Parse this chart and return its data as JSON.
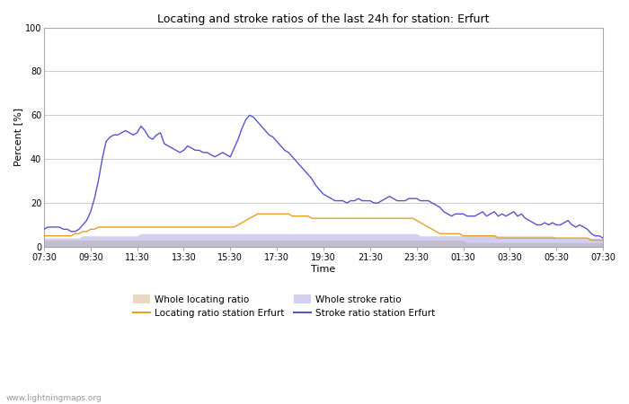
{
  "title": "Locating and stroke ratios of the last 24h for station: Erfurt",
  "xlabel": "Time",
  "ylabel": "Percent [%]",
  "ylim": [
    0,
    100
  ],
  "yticks": [
    0,
    20,
    40,
    60,
    80,
    100
  ],
  "xtick_labels": [
    "07:30",
    "09:30",
    "11:30",
    "13:30",
    "15:30",
    "17:30",
    "19:30",
    "21:30",
    "23:30",
    "01:30",
    "03:30",
    "05:30",
    "07:30"
  ],
  "watermark": "www.lightningmaps.org",
  "colors": {
    "whole_locating_fill": "#d2b48c",
    "whole_locating_fill_alpha": 0.5,
    "whole_stroke_fill": "#9999dd",
    "whole_stroke_fill_alpha": 0.45,
    "locating_station_line": "#e8a020",
    "stroke_station_line": "#5555cc"
  },
  "legend": {
    "whole_locating": "Whole locating ratio",
    "whole_stroke": "Whole stroke ratio",
    "locating_station": "Locating ratio station Erfurt",
    "stroke_station": "Stroke ratio station Erfurt"
  },
  "stroke_station": [
    8,
    9,
    9,
    9,
    9,
    8,
    8,
    7,
    7,
    8,
    10,
    12,
    16,
    22,
    30,
    40,
    48,
    50,
    51,
    51,
    52,
    53,
    52,
    51,
    52,
    55,
    53,
    50,
    49,
    51,
    52,
    47,
    46,
    45,
    44,
    43,
    44,
    46,
    45,
    44,
    44,
    43,
    43,
    42,
    41,
    42,
    43,
    42,
    41,
    45,
    49,
    54,
    58,
    60,
    59,
    57,
    55,
    53,
    51,
    50,
    48,
    46,
    44,
    43,
    41,
    39,
    37,
    35,
    33,
    31,
    28,
    26,
    24,
    23,
    22,
    21,
    21,
    21,
    20,
    21,
    21,
    22,
    21,
    21,
    21,
    20,
    20,
    21,
    22,
    23,
    22,
    21,
    21,
    21,
    22,
    22,
    22,
    21,
    21,
    21,
    20,
    19,
    18,
    16,
    15,
    14,
    15,
    15,
    15,
    14,
    14,
    14,
    15,
    16,
    14,
    15,
    16,
    14,
    15,
    14,
    15,
    16,
    14,
    15,
    13,
    12,
    11,
    10,
    10,
    11,
    10,
    11,
    10,
    10,
    11,
    12,
    10,
    9,
    10,
    9,
    8,
    6,
    5,
    5,
    4,
    4,
    4,
    5,
    5,
    4,
    4,
    3,
    3,
    3,
    3,
    3,
    3,
    3,
    3,
    3,
    3,
    2,
    2,
    2,
    2,
    2,
    2,
    2,
    2,
    2,
    2,
    2,
    2,
    2,
    2,
    2,
    2,
    2,
    2,
    2,
    2,
    2,
    2,
    2,
    2,
    2,
    2,
    2,
    2,
    2,
    2,
    2,
    2,
    2,
    2,
    2,
    2,
    2,
    2,
    2,
    2,
    2,
    2,
    2,
    2,
    2,
    2,
    2,
    2,
    2,
    2,
    2,
    2,
    2,
    2,
    2,
    2,
    2,
    2,
    2,
    2,
    2,
    2,
    2,
    2,
    2,
    2,
    2,
    2,
    2,
    2,
    2,
    2,
    2,
    2,
    2,
    2,
    2,
    2,
    2,
    2,
    2,
    2,
    2,
    2
  ],
  "locating_station": [
    5,
    5,
    5,
    5,
    5,
    5,
    5,
    5,
    6,
    6,
    7,
    7,
    8,
    8,
    9,
    9,
    9,
    9,
    9,
    9,
    9,
    9,
    9,
    9,
    9,
    9,
    9,
    9,
    9,
    9,
    9,
    9,
    9,
    9,
    9,
    9,
    9,
    9,
    9,
    9,
    9,
    9,
    9,
    9,
    9,
    9,
    9,
    9,
    9,
    9,
    10,
    11,
    12,
    13,
    14,
    15,
    15,
    15,
    15,
    15,
    15,
    15,
    15,
    15,
    14,
    14,
    14,
    14,
    14,
    13,
    13,
    13,
    13,
    13,
    13,
    13,
    13,
    13,
    13,
    13,
    13,
    13,
    13,
    13,
    13,
    13,
    13,
    13,
    13,
    13,
    13,
    13,
    13,
    13,
    13,
    13,
    12,
    11,
    10,
    9,
    8,
    7,
    6,
    6,
    6,
    6,
    6,
    6,
    5,
    5,
    5,
    5,
    5,
    5,
    5,
    5,
    5,
    4,
    4,
    4,
    4,
    4,
    4,
    4,
    4,
    4,
    4,
    4,
    4,
    4,
    4,
    4,
    4,
    4,
    4,
    4,
    4,
    4,
    4,
    4,
    4,
    3,
    3,
    3,
    3,
    3,
    3,
    3,
    3,
    3,
    3,
    3,
    3,
    3,
    3,
    3,
    3,
    3,
    3,
    3,
    3,
    3,
    3,
    3,
    3,
    3,
    3,
    3,
    3,
    3,
    3,
    3,
    3,
    3,
    3,
    3,
    3,
    3,
    3,
    3,
    3,
    3,
    3,
    3,
    3,
    3,
    3,
    3,
    3,
    3,
    3,
    3,
    3,
    2,
    2,
    2,
    2,
    2,
    2,
    2,
    2,
    2,
    2,
    2,
    2,
    2,
    2,
    2,
    2,
    2,
    2,
    2,
    2,
    2,
    2,
    2,
    2,
    2,
    2,
    2,
    2,
    2,
    2,
    2,
    2,
    2,
    2,
    2,
    2,
    2,
    2,
    2,
    2,
    2,
    2,
    2,
    2,
    2,
    2,
    2,
    2,
    2,
    2,
    2,
    2
  ],
  "whole_locating": [
    3,
    3,
    3,
    3,
    3,
    3,
    3,
    3,
    3,
    3,
    3,
    3,
    3,
    3,
    3,
    3,
    3,
    3,
    3,
    3,
    3,
    3,
    3,
    3,
    3,
    3,
    3,
    3,
    3,
    3,
    3,
    3,
    3,
    3,
    3,
    3,
    3,
    3,
    3,
    3,
    3,
    3,
    3,
    3,
    3,
    3,
    3,
    3,
    3,
    3,
    3,
    3,
    3,
    3,
    3,
    3,
    3,
    3,
    3,
    3,
    3,
    3,
    3,
    3,
    3,
    3,
    3,
    3,
    3,
    3,
    3,
    3,
    3,
    3,
    3,
    3,
    3,
    3,
    3,
    3,
    3,
    3,
    3,
    3,
    3,
    3,
    3,
    3,
    3,
    3,
    3,
    3,
    3,
    3,
    3,
    3,
    3,
    3,
    3,
    3,
    3,
    3,
    3,
    3,
    3,
    3,
    3,
    3,
    3,
    2,
    2,
    2,
    2,
    2,
    2,
    2,
    2,
    2,
    2,
    2,
    2,
    2,
    2,
    2,
    2,
    2,
    2,
    2,
    2,
    2,
    2,
    2,
    2,
    2,
    2,
    2,
    2,
    2,
    2,
    2,
    2,
    2,
    2,
    2,
    2,
    2,
    2,
    2,
    2,
    2,
    2,
    2,
    2,
    2,
    2,
    2,
    2,
    2,
    2,
    2,
    2,
    2,
    2,
    2,
    2,
    2,
    2,
    2,
    2,
    2,
    2,
    2,
    2,
    2,
    2,
    2,
    2,
    2,
    2,
    2,
    2,
    2,
    2,
    2,
    2,
    2,
    2,
    2,
    2,
    2,
    2,
    2,
    2,
    2,
    2,
    2,
    2,
    2,
    2,
    2,
    2,
    2,
    2,
    2,
    2,
    2,
    2,
    2,
    2,
    2,
    2,
    2,
    2,
    2,
    2,
    2,
    2,
    2,
    2,
    2,
    2,
    2,
    2,
    2,
    2,
    2,
    2,
    2,
    2,
    2,
    2,
    2,
    2,
    2,
    2,
    2,
    2,
    2,
    2,
    2,
    2,
    2,
    2,
    2,
    2
  ],
  "whole_stroke": [
    4,
    4,
    4,
    4,
    4,
    4,
    4,
    4,
    4,
    4,
    5,
    5,
    5,
    5,
    5,
    5,
    5,
    5,
    5,
    5,
    5,
    5,
    5,
    5,
    5,
    6,
    6,
    6,
    6,
    6,
    6,
    6,
    6,
    6,
    6,
    6,
    6,
    6,
    6,
    6,
    6,
    6,
    6,
    6,
    6,
    6,
    6,
    6,
    6,
    6,
    6,
    6,
    6,
    6,
    6,
    6,
    6,
    6,
    6,
    6,
    6,
    6,
    6,
    6,
    6,
    6,
    6,
    6,
    6,
    6,
    6,
    6,
    6,
    6,
    6,
    6,
    6,
    6,
    6,
    6,
    6,
    6,
    6,
    6,
    6,
    6,
    6,
    6,
    6,
    6,
    6,
    6,
    6,
    6,
    6,
    6,
    6,
    5,
    5,
    5,
    5,
    5,
    5,
    5,
    5,
    5,
    5,
    5,
    5,
    5,
    5,
    5,
    5,
    5,
    5,
    5,
    5,
    5,
    5,
    5,
    5,
    5,
    5,
    5,
    5,
    5,
    5,
    5,
    5,
    5,
    5,
    5,
    4,
    4,
    4,
    4,
    4,
    4,
    4,
    4,
    4,
    4,
    4,
    4,
    4,
    4,
    4,
    4,
    4,
    4,
    4,
    4,
    4,
    4,
    4,
    4,
    4,
    4,
    4,
    4,
    4,
    4,
    4,
    4,
    4,
    4,
    4,
    4,
    4,
    4,
    4,
    4,
    4,
    4,
    4,
    4,
    4,
    4,
    4,
    4,
    4,
    4,
    4,
    4,
    4,
    4,
    4,
    4,
    4,
    4,
    4,
    4,
    4,
    4,
    4,
    4,
    4,
    4,
    4,
    4,
    4,
    4,
    4,
    4,
    4,
    4,
    4,
    4,
    4,
    4,
    4,
    4,
    4,
    4,
    4,
    4,
    4,
    4,
    4,
    4,
    4,
    4,
    4,
    4,
    4,
    4,
    4,
    4,
    4,
    4,
    4,
    4,
    4,
    4,
    4,
    4,
    4,
    4,
    4,
    4,
    4,
    4,
    4,
    4,
    4
  ]
}
